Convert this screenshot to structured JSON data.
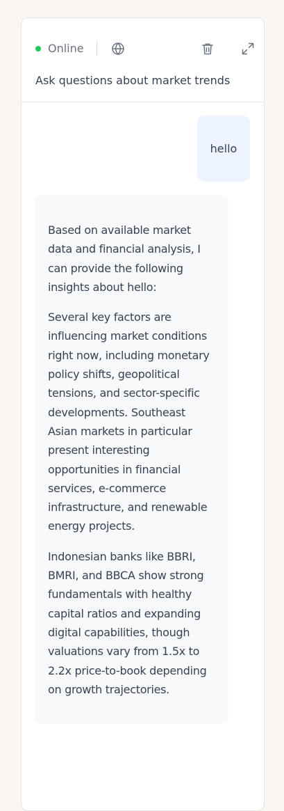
{
  "header": {
    "status_label": "Online",
    "status_color": "#22c55e",
    "subtitle": "Ask questions about market trends",
    "icons": {
      "language": "globe-icon",
      "clear": "trash-icon",
      "expand": "expand-icon"
    }
  },
  "messages": {
    "user": {
      "text": "hello"
    },
    "assistant": {
      "paragraphs": [
        "Based on available market data and financial analysis, I can provide the following insights about hello:",
        "Several key factors are influencing market conditions right now, including monetary policy shifts, geopolitical tensions, and sector-specific developments. Southeast Asian markets in particular present interesting opportunities in financial services, e-commerce infrastructure, and renewable energy projects.",
        "Indonesian banks like BBRI, BMRI, and BBCA show strong fundamentals with healthy capital ratios and expanding digital capabilities, though valuations vary from 1.5x to 2.2x price-to-book depending on growth trajectories."
      ]
    }
  }
}
